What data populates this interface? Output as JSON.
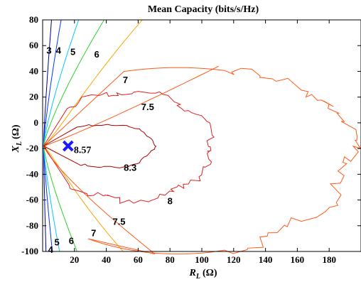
{
  "chart_data": {
    "type": "contour",
    "title": "Mean Capacity (bits/s/Hz)",
    "xlabel_main": "R",
    "xlabel_sub": "L",
    "xlabel_unit": "(Ω)",
    "ylabel_main": "X",
    "ylabel_sub": "L",
    "ylabel_unit": "(Ω)",
    "xlim": [
      0,
      200
    ],
    "ylim": [
      -100,
      80
    ],
    "xticks": [
      20,
      40,
      60,
      80,
      100,
      120,
      140,
      160,
      180
    ],
    "yticks": [
      -100,
      -80,
      -60,
      -40,
      -20,
      0,
      20,
      40,
      60,
      80
    ],
    "grid": false,
    "levels": [
      {
        "value": "3",
        "color": "#00008f"
      },
      {
        "value": "4",
        "color": "#0038ff"
      },
      {
        "value": "5",
        "color": "#00c8ff"
      },
      {
        "value": "6",
        "color": "#2ed12e"
      },
      {
        "value": "7",
        "color": "#ffa500"
      },
      {
        "value": "7.5",
        "color": "#ff5a1a"
      },
      {
        "value": "8",
        "color": "#e02020"
      },
      {
        "value": "8.3",
        "color": "#b00000"
      }
    ],
    "contour_labels": [
      {
        "text": "3",
        "x": 4,
        "y": 56
      },
      {
        "text": "4",
        "x": 10,
        "y": 56
      },
      {
        "text": "5",
        "x": 19,
        "y": 55
      },
      {
        "text": "6",
        "x": 34,
        "y": 53
      },
      {
        "text": "7",
        "x": 52,
        "y": 33
      },
      {
        "text": "7.5",
        "x": 66,
        "y": 12
      },
      {
        "text": "8.3",
        "x": 55,
        "y": -35
      },
      {
        "text": "8",
        "x": 80,
        "y": -61
      },
      {
        "text": "7.5",
        "x": 48,
        "y": -77
      },
      {
        "text": "7",
        "x": 32,
        "y": -86
      },
      {
        "text": "6",
        "x": 18,
        "y": -92
      },
      {
        "text": "5",
        "x": 9,
        "y": -93
      },
      {
        "text": "4",
        "x": 5,
        "y": -99
      }
    ],
    "maximum": {
      "x": 16,
      "y": -18,
      "label": "8.57"
    }
  }
}
